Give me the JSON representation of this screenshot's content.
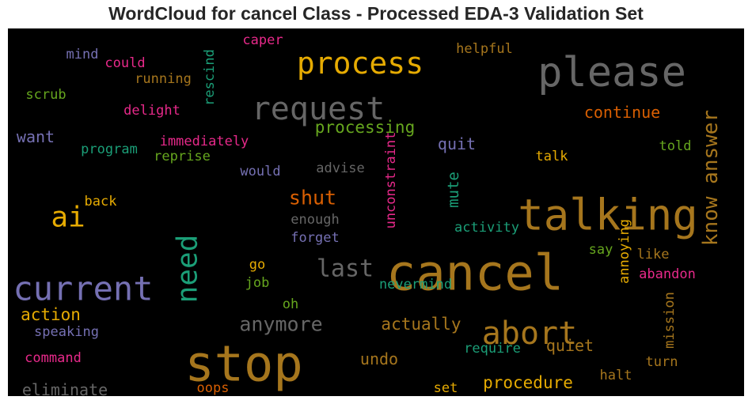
{
  "chart_data": {
    "type": "wordcloud",
    "title": "WordCloud for cancel Class - Processed EDA-3 Validation Set",
    "background": "#000000",
    "words": [
      {
        "text": "cancel",
        "color": "#a6761d",
        "weight": 62,
        "orientation": "horizontal"
      },
      {
        "text": "stop",
        "color": "#a6761d",
        "weight": 62,
        "orientation": "horizontal"
      },
      {
        "text": "talking",
        "color": "#a6761d",
        "weight": 54,
        "orientation": "horizontal"
      },
      {
        "text": "please",
        "color": "#666666",
        "weight": 52,
        "orientation": "horizontal"
      },
      {
        "text": "current",
        "color": "#7570b3",
        "weight": 42,
        "orientation": "horizontal"
      },
      {
        "text": "abort",
        "color": "#a6761d",
        "weight": 40,
        "orientation": "horizontal"
      },
      {
        "text": "request",
        "color": "#666666",
        "weight": 40,
        "orientation": "horizontal"
      },
      {
        "text": "process",
        "color": "#e6ab02",
        "weight": 38,
        "orientation": "horizontal"
      },
      {
        "text": "need",
        "color": "#1b9e77",
        "weight": 36,
        "orientation": "vertical"
      },
      {
        "text": "ai",
        "color": "#e6ab02",
        "weight": 36,
        "orientation": "horizontal"
      },
      {
        "text": "last",
        "color": "#666666",
        "weight": 30,
        "orientation": "horizontal"
      },
      {
        "text": "know answer",
        "color": "#a6761d",
        "weight": 26,
        "orientation": "vertical"
      },
      {
        "text": "anymore",
        "color": "#666666",
        "weight": 25,
        "orientation": "horizontal"
      },
      {
        "text": "shut",
        "color": "#d95f02",
        "weight": 25,
        "orientation": "horizontal"
      },
      {
        "text": "processing",
        "color": "#66a61e",
        "weight": 21,
        "orientation": "horizontal"
      },
      {
        "text": "actually",
        "color": "#a6761d",
        "weight": 21,
        "orientation": "horizontal"
      },
      {
        "text": "action",
        "color": "#e6ab02",
        "weight": 21,
        "orientation": "horizontal"
      },
      {
        "text": "procedure",
        "color": "#e6ab02",
        "weight": 21,
        "orientation": "horizontal"
      },
      {
        "text": "continue",
        "color": "#d95f02",
        "weight": 20,
        "orientation": "horizontal"
      },
      {
        "text": "quiet",
        "color": "#a6761d",
        "weight": 20,
        "orientation": "horizontal"
      },
      {
        "text": "undo",
        "color": "#a6761d",
        "weight": 20,
        "orientation": "horizontal"
      },
      {
        "text": "eliminate",
        "color": "#666666",
        "weight": 20,
        "orientation": "horizontal"
      },
      {
        "text": "want",
        "color": "#7570b3",
        "weight": 20,
        "orientation": "horizontal"
      },
      {
        "text": "quit",
        "color": "#7570b3",
        "weight": 20,
        "orientation": "horizontal"
      },
      {
        "text": "mute",
        "color": "#1b9e77",
        "weight": 19,
        "orientation": "vertical"
      },
      {
        "text": "immediately",
        "color": "#e7298a",
        "weight": 17,
        "orientation": "horizontal"
      },
      {
        "text": "speaking",
        "color": "#7570b3",
        "weight": 17,
        "orientation": "horizontal"
      },
      {
        "text": "command",
        "color": "#e7298a",
        "weight": 17,
        "orientation": "horizontal"
      },
      {
        "text": "halt",
        "color": "#a6761d",
        "weight": 17,
        "orientation": "horizontal"
      },
      {
        "text": "turn",
        "color": "#a6761d",
        "weight": 17,
        "orientation": "horizontal"
      },
      {
        "text": "require",
        "color": "#1b9e77",
        "weight": 17,
        "orientation": "horizontal"
      },
      {
        "text": "set",
        "color": "#e6ab02",
        "weight": 17,
        "orientation": "horizontal"
      },
      {
        "text": "oops",
        "color": "#d95f02",
        "weight": 17,
        "orientation": "horizontal"
      },
      {
        "text": "go",
        "color": "#e6ab02",
        "weight": 17,
        "orientation": "horizontal"
      },
      {
        "text": "job",
        "color": "#66a61e",
        "weight": 17,
        "orientation": "horizontal"
      },
      {
        "text": "nevermind",
        "color": "#1b9e77",
        "weight": 17,
        "orientation": "horizontal"
      },
      {
        "text": "like",
        "color": "#a6761d",
        "weight": 17,
        "orientation": "horizontal"
      },
      {
        "text": "abandon",
        "color": "#e7298a",
        "weight": 17,
        "orientation": "horizontal"
      },
      {
        "text": "say",
        "color": "#66a61e",
        "weight": 17,
        "orientation": "horizontal"
      },
      {
        "text": "annoying",
        "color": "#e6ab02",
        "weight": 17,
        "orientation": "vertical"
      },
      {
        "text": "mission",
        "color": "#a6761d",
        "weight": 17,
        "orientation": "vertical"
      },
      {
        "text": "oh",
        "color": "#66a61e",
        "weight": 17,
        "orientation": "horizontal"
      },
      {
        "text": "activity",
        "color": "#1b9e77",
        "weight": 17,
        "orientation": "horizontal"
      },
      {
        "text": "forget",
        "color": "#7570b3",
        "weight": 17,
        "orientation": "horizontal"
      },
      {
        "text": "enough",
        "color": "#666666",
        "weight": 17,
        "orientation": "horizontal"
      },
      {
        "text": "unconstraint",
        "color": "#e7298a",
        "weight": 17,
        "orientation": "vertical"
      },
      {
        "text": "advise",
        "color": "#666666",
        "weight": 17,
        "orientation": "horizontal"
      },
      {
        "text": "would",
        "color": "#7570b3",
        "weight": 17,
        "orientation": "horizontal"
      },
      {
        "text": "talk",
        "color": "#e6ab02",
        "weight": 17,
        "orientation": "horizontal"
      },
      {
        "text": "told",
        "color": "#66a61e",
        "weight": 17,
        "orientation": "horizontal"
      },
      {
        "text": "back",
        "color": "#e6ab02",
        "weight": 17,
        "orientation": "horizontal"
      },
      {
        "text": "program",
        "color": "#1b9e77",
        "weight": 17,
        "orientation": "horizontal"
      },
      {
        "text": "reprise",
        "color": "#66a61e",
        "weight": 17,
        "orientation": "horizontal"
      },
      {
        "text": "delight",
        "color": "#e7298a",
        "weight": 17,
        "orientation": "horizontal"
      },
      {
        "text": "scrub",
        "color": "#66a61e",
        "weight": 17,
        "orientation": "horizontal"
      },
      {
        "text": "running",
        "color": "#a6761d",
        "weight": 17,
        "orientation": "horizontal"
      },
      {
        "text": "could",
        "color": "#e7298a",
        "weight": 17,
        "orientation": "horizontal"
      },
      {
        "text": "mind",
        "color": "#7570b3",
        "weight": 17,
        "orientation": "horizontal"
      },
      {
        "text": "caper",
        "color": "#e7298a",
        "weight": 17,
        "orientation": "horizontal"
      },
      {
        "text": "rescind",
        "color": "#1b9e77",
        "weight": 17,
        "orientation": "vertical"
      },
      {
        "text": "helpful",
        "color": "#a6761d",
        "weight": 17,
        "orientation": "horizontal"
      }
    ]
  }
}
